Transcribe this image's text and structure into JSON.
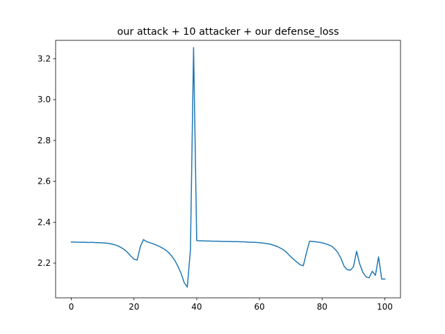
{
  "chart_data": {
    "type": "line",
    "title": "our attack + 10 attacker + our defense_loss",
    "xlabel": "",
    "ylabel": "",
    "xlim": [
      -5,
      105
    ],
    "ylim": [
      2.03,
      3.29
    ],
    "x_ticks": [
      0,
      20,
      40,
      60,
      80,
      100
    ],
    "y_ticks": [
      2.2,
      2.4,
      2.6,
      2.8,
      3.0,
      3.2
    ],
    "x_tick_labels": [
      "0",
      "20",
      "40",
      "60",
      "80",
      "100"
    ],
    "y_tick_labels": [
      "2.2",
      "2.4",
      "2.6",
      "2.8",
      "3.0",
      "3.2"
    ],
    "grid": false,
    "series": [
      {
        "color": "#1f77b4",
        "x": [
          0,
          1,
          2,
          3,
          4,
          5,
          6,
          7,
          8,
          9,
          10,
          11,
          12,
          13,
          14,
          15,
          16,
          17,
          18,
          19,
          20,
          21,
          22,
          23,
          24,
          25,
          26,
          27,
          28,
          29,
          30,
          31,
          32,
          33,
          34,
          35,
          36,
          37,
          38,
          39,
          40,
          41,
          42,
          43,
          44,
          45,
          46,
          47,
          48,
          49,
          50,
          51,
          52,
          53,
          54,
          55,
          56,
          57,
          58,
          59,
          60,
          61,
          62,
          63,
          64,
          65,
          66,
          67,
          68,
          69,
          70,
          71,
          72,
          73,
          74,
          75,
          76,
          77,
          78,
          79,
          80,
          81,
          82,
          83,
          84,
          85,
          86,
          87,
          88,
          89,
          90,
          91,
          92,
          93,
          94,
          95,
          96,
          97,
          98,
          99,
          100
        ],
        "y": [
          2.303,
          2.303,
          2.302,
          2.302,
          2.302,
          2.301,
          2.301,
          2.301,
          2.3,
          2.3,
          2.299,
          2.298,
          2.296,
          2.293,
          2.289,
          2.283,
          2.275,
          2.265,
          2.251,
          2.234,
          2.219,
          2.215,
          2.28,
          2.315,
          2.305,
          2.3,
          2.295,
          2.289,
          2.282,
          2.274,
          2.265,
          2.252,
          2.235,
          2.213,
          2.185,
          2.15,
          2.105,
          2.082,
          2.265,
          3.255,
          2.31,
          2.309,
          2.309,
          2.308,
          2.308,
          2.307,
          2.307,
          2.307,
          2.306,
          2.306,
          2.306,
          2.305,
          2.305,
          2.305,
          2.304,
          2.304,
          2.303,
          2.302,
          2.302,
          2.301,
          2.3,
          2.298,
          2.296,
          2.294,
          2.29,
          2.285,
          2.279,
          2.271,
          2.261,
          2.247,
          2.231,
          2.217,
          2.204,
          2.192,
          2.187,
          2.25,
          2.307,
          2.306,
          2.304,
          2.302,
          2.299,
          2.295,
          2.29,
          2.283,
          2.27,
          2.252,
          2.223,
          2.185,
          2.168,
          2.165,
          2.182,
          2.258,
          2.195,
          2.155,
          2.133,
          2.128,
          2.16,
          2.14,
          2.23,
          2.122,
          2.122
        ]
      }
    ]
  }
}
